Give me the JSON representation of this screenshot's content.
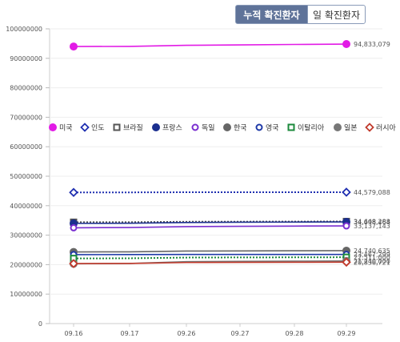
{
  "tabs": {
    "cumulative_label": "누적 확진환자",
    "daily_label": "일 확진환자",
    "active": "cumulative"
  },
  "chart_data": {
    "type": "line",
    "title": "",
    "xlabel": "",
    "ylabel": "",
    "ylim": [
      0,
      100000000
    ],
    "yticks": [
      0,
      10000000,
      20000000,
      30000000,
      40000000,
      50000000,
      60000000,
      70000000,
      80000000,
      90000000,
      100000000
    ],
    "categories": [
      "09.16",
      "09.17",
      "09.26",
      "09.27",
      "09.28",
      "09.29"
    ],
    "grid": "horizontal",
    "legend_position": "middle-left",
    "series": [
      {
        "name": "미국",
        "color": "#e21be6",
        "marker": "filled-circle",
        "style": "solid",
        "values": [
          94000000,
          94050000,
          94400000,
          94550000,
          94700000,
          94833079
        ],
        "end_label": "94,833,079"
      },
      {
        "name": "인도",
        "color": "#1f2fb0",
        "marker": "diamond",
        "style": "dotted",
        "values": [
          44500000,
          44510000,
          44560000,
          44565000,
          44572000,
          44579088
        ],
        "end_label": "44,579,088"
      },
      {
        "name": "브라질",
        "color": "#555555",
        "marker": "square",
        "style": "dotted",
        "values": [
          34400000,
          34420000,
          34560000,
          34590000,
          34620000,
          34648288
        ],
        "end_label": "34,648,288"
      },
      {
        "name": "프랑스",
        "color": "#1b2f8f",
        "marker": "filled-circle",
        "style": "solid",
        "values": [
          34000000,
          34040000,
          34300000,
          34380000,
          34440000,
          34498464
        ],
        "end_label": "34,498,464"
      },
      {
        "name": "독일",
        "color": "#7a2fd0",
        "marker": "circle",
        "style": "solid",
        "values": [
          32500000,
          32600000,
          32900000,
          33000000,
          33080000,
          33137143
        ],
        "end_label": "33,137,143"
      },
      {
        "name": "한국",
        "color": "#666666",
        "marker": "filled-circle",
        "style": "solid",
        "values": [
          24300000,
          24350000,
          24600000,
          24650000,
          24700000,
          24740635
        ],
        "end_label": "24,740,635"
      },
      {
        "name": "영국",
        "color": "#1f3aa8",
        "marker": "circle",
        "style": "solid",
        "values": [
          23400000,
          23410000,
          23450000,
          23455000,
          23460000,
          23467299
        ],
        "end_label": "23,467,299"
      },
      {
        "name": "이탈리아",
        "color": "#1c8a3c",
        "marker": "square",
        "style": "dotted",
        "values": [
          22100000,
          22150000,
          22400000,
          22450000,
          22480000,
          22511000
        ],
        "end_label": "22,511,000"
      },
      {
        "name": "일본",
        "color": "#777777",
        "marker": "filled-circle",
        "style": "solid",
        "values": [
          20300000,
          20400000,
          21000000,
          21100000,
          21180000,
          21240000
        ],
        "end_label": "21,240,000"
      },
      {
        "name": "러시아",
        "color": "#c0392b",
        "marker": "diamond",
        "style": "solid",
        "values": [
          20350000,
          20400000,
          20720000,
          20770000,
          20810000,
          20836721
        ],
        "end_label": "20,836,721"
      }
    ]
  }
}
